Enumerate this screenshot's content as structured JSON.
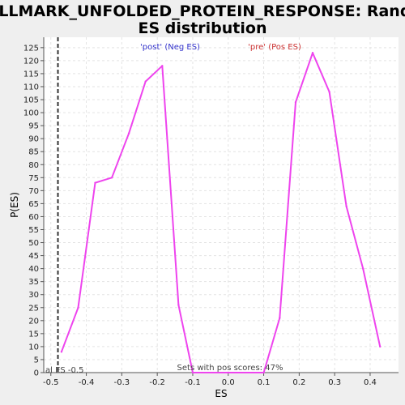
{
  "chart_data": {
    "type": "line",
    "title": "HALLMARK_UNFOLDED_PROTEIN_RESPONSE: Random ES distribution",
    "title_lines": [
      "HALLMARK_UNFOLDED_PROTEIN_RESPONSE: Random",
      "ES distribution"
    ],
    "xlabel": "ES",
    "ylabel": "P(ES)",
    "xlim": [
      -0.52,
      0.48
    ],
    "ylim": [
      0,
      129
    ],
    "x_ticks": [
      -0.5,
      -0.4,
      -0.3,
      -0.2,
      -0.1,
      0.0,
      0.1,
      0.2,
      0.3,
      0.4
    ],
    "x_tick_labels": [
      "-0.5",
      "-0.4",
      "-0.3",
      "-0.2",
      "-0.1",
      "0.0",
      "0.1",
      "0.2",
      "0.3",
      "0.4"
    ],
    "y_ticks": [
      0,
      5,
      10,
      15,
      20,
      25,
      30,
      35,
      40,
      45,
      50,
      55,
      60,
      65,
      70,
      75,
      80,
      85,
      90,
      95,
      100,
      105,
      110,
      115,
      120,
      125
    ],
    "grid": true,
    "series": [
      {
        "color": "#ee44ee",
        "x": [
          -0.47,
          -0.423,
          -0.375,
          -0.328,
          -0.28,
          -0.233,
          -0.186,
          -0.14,
          -0.1,
          0.0,
          0.1,
          0.145,
          0.19,
          0.238,
          0.285,
          0.333,
          0.38,
          0.428
        ],
        "y": [
          8,
          25,
          73,
          75,
          92,
          112,
          118,
          26,
          0,
          0,
          0,
          21,
          104,
          123,
          108,
          64,
          40,
          10
        ]
      }
    ],
    "annotations": {
      "neg_label": "'post' (Neg ES)",
      "neg_color": "#3333cc",
      "pos_label": "'pre' (Pos ES)",
      "pos_color": "#cc3333",
      "actual_es_label": "al ES -0.5",
      "actual_es_value": -0.48,
      "pos_scores_note": "Sets with pos scores: 47%"
    }
  }
}
